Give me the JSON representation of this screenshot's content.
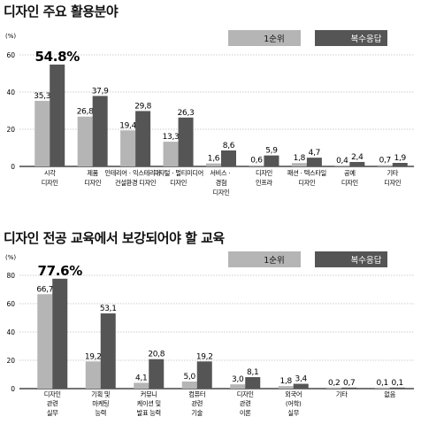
{
  "colors": {
    "single": "#b5b5b5",
    "multi": "#555555",
    "axis": "#222222"
  },
  "chart_data": [
    {
      "type": "bar",
      "title": "디자인 주요 활용분야",
      "ylabel": "(%)",
      "ylim": [
        0,
        60
      ],
      "yticks": [
        "0",
        "20",
        "40",
        "60"
      ],
      "legend_position": "top-right",
      "categories": [
        [
          "시각",
          "디자인"
        ],
        [
          "제품",
          "디자인"
        ],
        [
          "인테리어ㆍ익스테리어ㆍ",
          "건설환경 디자인"
        ],
        [
          "디지털ㆍ멀티미디어",
          "디자인"
        ],
        [
          "서비스ㆍ",
          "경험",
          "디자인"
        ],
        [
          "디자인",
          "인프라"
        ],
        [
          "패션ㆍ텍스타일",
          "디자인"
        ],
        [
          "공예",
          "디자인"
        ],
        [
          "기타",
          "디자인"
        ]
      ],
      "series": [
        {
          "name": "1순위",
          "values": [
            35.3,
            26.8,
            19.4,
            13.3,
            1.6,
            0.6,
            1.8,
            0.4,
            0.7
          ],
          "labels": [
            "35,3",
            "26,8",
            "19,4",
            "13,3",
            "1,6",
            "0,6",
            "1,8",
            "0,4",
            "0,7"
          ]
        },
        {
          "name": "복수응답",
          "values": [
            54.8,
            37.9,
            29.8,
            26.3,
            8.6,
            5.9,
            4.7,
            2.4,
            1.9
          ],
          "labels": [
            "54.8%",
            "37,9",
            "29,8",
            "26,3",
            "8,6",
            "5,9",
            "4,7",
            "2,4",
            "1,9"
          ]
        }
      ]
    },
    {
      "type": "bar",
      "title": "디자인 전공 교육에서 보강되어야 할 교육",
      "ylabel": "(%)",
      "ylim": [
        0,
        80
      ],
      "yticks": [
        "0",
        "20",
        "40",
        "60",
        "80"
      ],
      "legend_position": "top-right",
      "categories": [
        [
          "디자인",
          "관련",
          "실무"
        ],
        [
          "기획 및",
          "마케팅",
          "능력"
        ],
        [
          "커뮤니",
          "케이션 및",
          "발표 능력"
        ],
        [
          "컴퓨터",
          "관련",
          "기술"
        ],
        [
          "디자인",
          "관련",
          "이론"
        ],
        [
          "외국어",
          "(어학)",
          "실무"
        ],
        [
          "기타"
        ],
        [
          "없음"
        ]
      ],
      "series": [
        {
          "name": "1순위",
          "values": [
            66.7,
            19.2,
            4.1,
            5.0,
            3.0,
            1.8,
            0.2,
            0.1
          ],
          "labels": [
            "66,7",
            "19,2",
            "4,1",
            "5,0",
            "3,0",
            "1,8",
            "0,2",
            "0,1"
          ]
        },
        {
          "name": "복수응답",
          "values": [
            77.6,
            53.1,
            20.8,
            19.2,
            8.1,
            3.4,
            0.7,
            0.1
          ],
          "labels": [
            "77.6%",
            "53,1",
            "20,8",
            "19,2",
            "8,1",
            "3,4",
            "0,7",
            "0,1"
          ]
        }
      ]
    }
  ]
}
